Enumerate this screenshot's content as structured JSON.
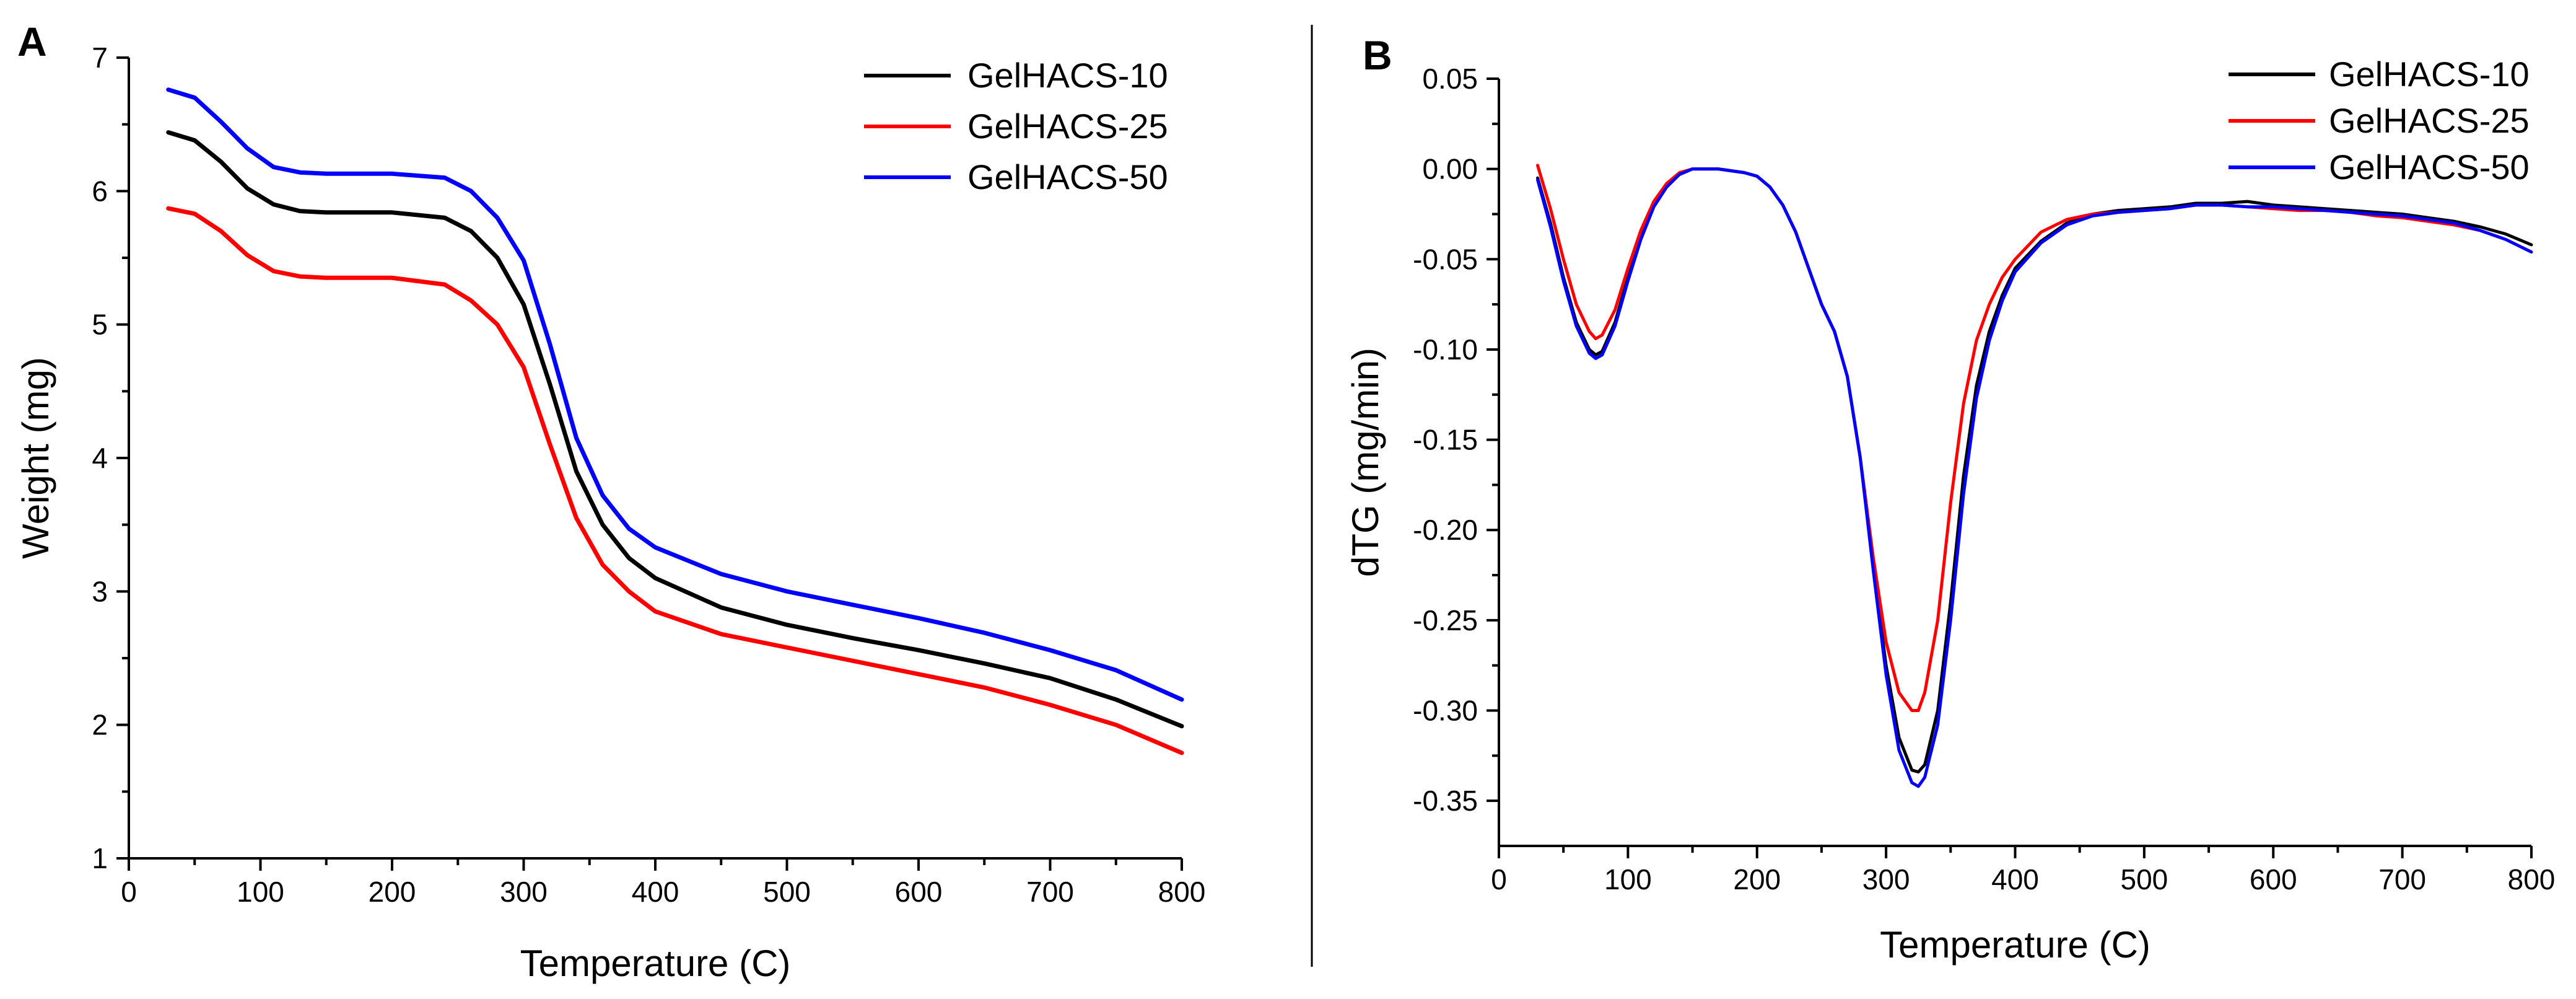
{
  "chart_data": [
    {
      "panel": "A",
      "type": "line",
      "title": "",
      "xlabel": "Temperature (C)",
      "ylabel": "Weight (mg)",
      "xlim": [
        0,
        800
      ],
      "ylim": [
        1,
        7
      ],
      "xticks": [
        0,
        100,
        200,
        300,
        400,
        500,
        600,
        700,
        800
      ],
      "yticks": [
        1,
        2,
        3,
        4,
        5,
        6,
        7
      ],
      "legend_position": "top-right",
      "series": [
        {
          "name": "GelHACS-10",
          "color": "#000000",
          "x": [
            30,
            50,
            70,
            90,
            110,
            130,
            150,
            200,
            240,
            260,
            280,
            300,
            320,
            340,
            360,
            380,
            400,
            450,
            500,
            550,
            600,
            650,
            700,
            750,
            800
          ],
          "y": [
            6.44,
            6.38,
            6.22,
            6.02,
            5.9,
            5.85,
            5.84,
            5.84,
            5.8,
            5.7,
            5.5,
            5.15,
            4.55,
            3.9,
            3.5,
            3.25,
            3.1,
            2.88,
            2.75,
            2.65,
            2.56,
            2.46,
            2.35,
            2.19,
            1.99
          ]
        },
        {
          "name": "GelHACS-25",
          "color": "#ff0000",
          "x": [
            30,
            50,
            70,
            90,
            110,
            130,
            150,
            200,
            240,
            260,
            280,
            300,
            320,
            340,
            360,
            380,
            400,
            450,
            500,
            550,
            600,
            650,
            700,
            750,
            800
          ],
          "y": [
            5.87,
            5.83,
            5.7,
            5.52,
            5.4,
            5.36,
            5.35,
            5.35,
            5.3,
            5.18,
            5.0,
            4.68,
            4.1,
            3.55,
            3.2,
            3.0,
            2.85,
            2.68,
            2.58,
            2.48,
            2.38,
            2.28,
            2.15,
            2.0,
            1.79
          ]
        },
        {
          "name": "GelHACS-50",
          "color": "#0000ff",
          "x": [
            30,
            50,
            70,
            90,
            110,
            130,
            150,
            200,
            240,
            260,
            280,
            300,
            320,
            340,
            360,
            380,
            400,
            450,
            500,
            550,
            600,
            650,
            700,
            750,
            800
          ],
          "y": [
            6.76,
            6.7,
            6.52,
            6.32,
            6.18,
            6.14,
            6.13,
            6.13,
            6.1,
            6.0,
            5.8,
            5.48,
            4.85,
            4.15,
            3.72,
            3.47,
            3.33,
            3.13,
            3.0,
            2.9,
            2.8,
            2.69,
            2.56,
            2.41,
            2.19
          ]
        }
      ]
    },
    {
      "panel": "B",
      "type": "line",
      "title": "",
      "xlabel": "Temperature (C)",
      "ylabel": "dTG (mg/min)",
      "xlim": [
        0,
        800
      ],
      "ylim": [
        -0.375,
        0.05
      ],
      "xticks": [
        0,
        100,
        200,
        300,
        400,
        500,
        600,
        700,
        800
      ],
      "yticks": [
        0.05,
        0.0,
        -0.05,
        -0.1,
        -0.15,
        -0.2,
        -0.25,
        -0.3,
        -0.35
      ],
      "ytick_labels": [
        "0.05",
        "0.00",
        "-0.05",
        "-0.10",
        "-0.15",
        "-0.20",
        "-0.25",
        "-0.30",
        "-0.35"
      ],
      "legend_position": "top-right",
      "series": [
        {
          "name": "GelHACS-10",
          "color": "#000000",
          "x": [
            30,
            40,
            50,
            60,
            70,
            75,
            80,
            90,
            100,
            110,
            120,
            130,
            140,
            150,
            160,
            170,
            180,
            190,
            200,
            210,
            220,
            230,
            240,
            250,
            260,
            270,
            280,
            290,
            300,
            310,
            320,
            325,
            330,
            340,
            350,
            360,
            370,
            380,
            390,
            400,
            420,
            440,
            460,
            480,
            500,
            520,
            540,
            560,
            580,
            600,
            620,
            640,
            660,
            680,
            700,
            720,
            740,
            760,
            780,
            800
          ],
          "y": [
            -0.005,
            -0.03,
            -0.06,
            -0.085,
            -0.1,
            -0.103,
            -0.101,
            -0.085,
            -0.06,
            -0.038,
            -0.02,
            -0.009,
            -0.003,
            0.0,
            0.0,
            0.0,
            -0.001,
            -0.002,
            -0.004,
            -0.01,
            -0.02,
            -0.035,
            -0.055,
            -0.075,
            -0.09,
            -0.115,
            -0.16,
            -0.22,
            -0.275,
            -0.315,
            -0.333,
            -0.334,
            -0.33,
            -0.3,
            -0.24,
            -0.17,
            -0.12,
            -0.09,
            -0.07,
            -0.055,
            -0.04,
            -0.03,
            -0.025,
            -0.023,
            -0.022,
            -0.021,
            -0.019,
            -0.019,
            -0.018,
            -0.02,
            -0.021,
            -0.022,
            -0.023,
            -0.024,
            -0.025,
            -0.027,
            -0.029,
            -0.032,
            -0.036,
            -0.042
          ]
        },
        {
          "name": "GelHACS-25",
          "color": "#ff0000",
          "x": [
            30,
            40,
            50,
            60,
            70,
            75,
            80,
            90,
            100,
            110,
            120,
            130,
            140,
            150,
            160,
            170,
            180,
            190,
            200,
            210,
            220,
            230,
            240,
            250,
            260,
            270,
            280,
            290,
            300,
            310,
            320,
            325,
            330,
            340,
            350,
            360,
            370,
            380,
            390,
            400,
            420,
            440,
            460,
            480,
            500,
            520,
            540,
            560,
            580,
            600,
            620,
            640,
            660,
            680,
            700,
            720,
            740,
            760,
            780,
            800
          ],
          "y": [
            0.002,
            -0.022,
            -0.05,
            -0.075,
            -0.09,
            -0.094,
            -0.092,
            -0.078,
            -0.055,
            -0.034,
            -0.018,
            -0.008,
            -0.002,
            0.0,
            0.0,
            0.0,
            -0.001,
            -0.002,
            -0.004,
            -0.01,
            -0.02,
            -0.035,
            -0.055,
            -0.075,
            -0.09,
            -0.115,
            -0.16,
            -0.215,
            -0.262,
            -0.29,
            -0.3,
            -0.3,
            -0.29,
            -0.25,
            -0.185,
            -0.13,
            -0.095,
            -0.075,
            -0.06,
            -0.05,
            -0.035,
            -0.028,
            -0.025,
            -0.024,
            -0.023,
            -0.022,
            -0.02,
            -0.02,
            -0.021,
            -0.022,
            -0.023,
            -0.023,
            -0.024,
            -0.026,
            -0.027,
            -0.029,
            -0.031,
            -0.034,
            -0.039,
            -0.046
          ]
        },
        {
          "name": "GelHACS-50",
          "color": "#0000ff",
          "x": [
            30,
            40,
            50,
            60,
            70,
            75,
            80,
            90,
            100,
            110,
            120,
            130,
            140,
            150,
            160,
            170,
            180,
            190,
            200,
            210,
            220,
            230,
            240,
            250,
            260,
            270,
            280,
            290,
            300,
            310,
            320,
            325,
            330,
            340,
            350,
            360,
            370,
            380,
            390,
            400,
            420,
            440,
            460,
            480,
            500,
            520,
            540,
            560,
            580,
            600,
            620,
            640,
            660,
            680,
            700,
            720,
            740,
            760,
            780,
            800
          ],
          "y": [
            -0.006,
            -0.032,
            -0.062,
            -0.087,
            -0.102,
            -0.105,
            -0.103,
            -0.087,
            -0.062,
            -0.039,
            -0.021,
            -0.01,
            -0.003,
            0.0,
            0.0,
            0.0,
            -0.001,
            -0.002,
            -0.004,
            -0.01,
            -0.02,
            -0.035,
            -0.055,
            -0.075,
            -0.09,
            -0.115,
            -0.16,
            -0.222,
            -0.28,
            -0.322,
            -0.34,
            -0.342,
            -0.337,
            -0.308,
            -0.25,
            -0.18,
            -0.127,
            -0.095,
            -0.073,
            -0.057,
            -0.041,
            -0.031,
            -0.026,
            -0.024,
            -0.023,
            -0.022,
            -0.02,
            -0.02,
            -0.021,
            -0.021,
            -0.022,
            -0.023,
            -0.024,
            -0.025,
            -0.026,
            -0.028,
            -0.03,
            -0.034,
            -0.039,
            -0.046
          ]
        }
      ]
    }
  ]
}
